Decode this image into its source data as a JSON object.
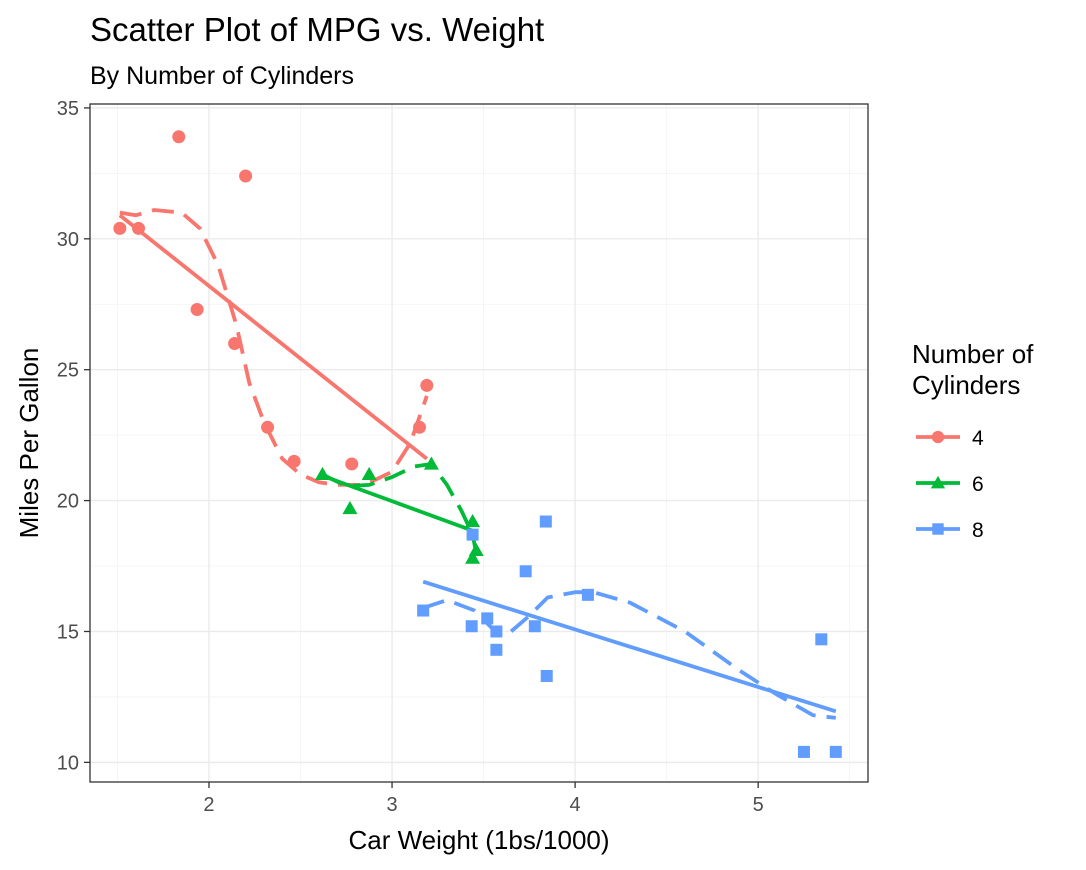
{
  "chart_data": {
    "type": "scatter",
    "title": "Scatter Plot of MPG vs. Weight",
    "subtitle": "By Number of Cylinders",
    "xlabel": "Car Weight (1bs/1000)",
    "ylabel": "Miles Per Gallon",
    "xlim": [
      1.35,
      5.6
    ],
    "ylim": [
      9.25,
      35.15
    ],
    "x_ticks": [
      2,
      3,
      4,
      5
    ],
    "y_ticks": [
      10,
      15,
      20,
      25,
      30,
      35
    ],
    "grid": true,
    "legend": {
      "title_lines": [
        "Number of",
        "Cylinders"
      ],
      "position": "right"
    },
    "series": [
      {
        "name": "4",
        "color": "#F8766D",
        "marker": "circle",
        "points": [
          [
            1.513,
            30.4
          ],
          [
            1.615,
            30.4
          ],
          [
            1.835,
            33.9
          ],
          [
            1.935,
            27.3
          ],
          [
            2.14,
            26.0
          ],
          [
            2.2,
            32.4
          ],
          [
            2.32,
            22.8
          ],
          [
            2.465,
            21.5
          ],
          [
            2.78,
            21.4
          ],
          [
            3.15,
            22.8
          ],
          [
            3.19,
            24.4
          ]
        ],
        "fit_linear": [
          [
            1.513,
            30.9
          ],
          [
            3.19,
            21.6
          ]
        ],
        "fit_loess": [
          [
            1.513,
            31.0
          ],
          [
            1.6,
            30.9
          ],
          [
            1.7,
            31.1
          ],
          [
            1.85,
            31.0
          ],
          [
            1.95,
            30.4
          ],
          [
            2.05,
            29.0
          ],
          [
            2.15,
            26.7
          ],
          [
            2.22,
            24.5
          ],
          [
            2.3,
            23.0
          ],
          [
            2.4,
            21.6
          ],
          [
            2.5,
            21.0
          ],
          [
            2.6,
            20.7
          ],
          [
            2.7,
            20.6
          ],
          [
            2.85,
            20.6
          ],
          [
            3.0,
            21.1
          ],
          [
            3.1,
            22.2
          ],
          [
            3.19,
            24.0
          ]
        ]
      },
      {
        "name": "6",
        "color": "#00BA38",
        "marker": "triangle",
        "points": [
          [
            2.62,
            21.0
          ],
          [
            2.77,
            19.7
          ],
          [
            2.875,
            21.0
          ],
          [
            3.215,
            21.4
          ],
          [
            3.44,
            19.2
          ],
          [
            3.44,
            17.8
          ],
          [
            3.46,
            18.1
          ]
        ],
        "fit_linear": [
          [
            2.62,
            20.95
          ],
          [
            3.46,
            18.8
          ]
        ],
        "fit_loess": [
          [
            2.62,
            21.0
          ],
          [
            2.75,
            20.55
          ],
          [
            2.875,
            20.6
          ],
          [
            3.0,
            20.9
          ],
          [
            3.12,
            21.3
          ],
          [
            3.215,
            21.4
          ],
          [
            3.3,
            20.6
          ],
          [
            3.38,
            19.6
          ],
          [
            3.44,
            18.7
          ],
          [
            3.46,
            18.0
          ]
        ]
      },
      {
        "name": "8",
        "color": "#619CFF",
        "marker": "square",
        "points": [
          [
            3.17,
            15.8
          ],
          [
            3.435,
            15.2
          ],
          [
            3.44,
            18.7
          ],
          [
            3.52,
            15.5
          ],
          [
            3.57,
            15.0
          ],
          [
            3.57,
            14.3
          ],
          [
            3.73,
            17.3
          ],
          [
            3.78,
            15.2
          ],
          [
            3.84,
            19.2
          ],
          [
            3.845,
            13.3
          ],
          [
            4.07,
            16.4
          ],
          [
            5.25,
            10.4
          ],
          [
            5.345,
            14.7
          ],
          [
            5.424,
            10.4
          ]
        ],
        "fit_linear": [
          [
            3.17,
            16.9
          ],
          [
            5.424,
            11.95
          ]
        ],
        "fit_loess": [
          [
            3.17,
            15.9
          ],
          [
            3.3,
            16.2
          ],
          [
            3.45,
            15.8
          ],
          [
            3.55,
            15.1
          ],
          [
            3.65,
            15.0
          ],
          [
            3.75,
            15.6
          ],
          [
            3.85,
            16.3
          ],
          [
            4.0,
            16.5
          ],
          [
            4.1,
            16.5
          ],
          [
            4.3,
            16.1
          ],
          [
            4.6,
            15.0
          ],
          [
            4.9,
            13.5
          ],
          [
            5.1,
            12.6
          ],
          [
            5.3,
            11.8
          ],
          [
            5.424,
            11.7
          ]
        ]
      }
    ]
  }
}
